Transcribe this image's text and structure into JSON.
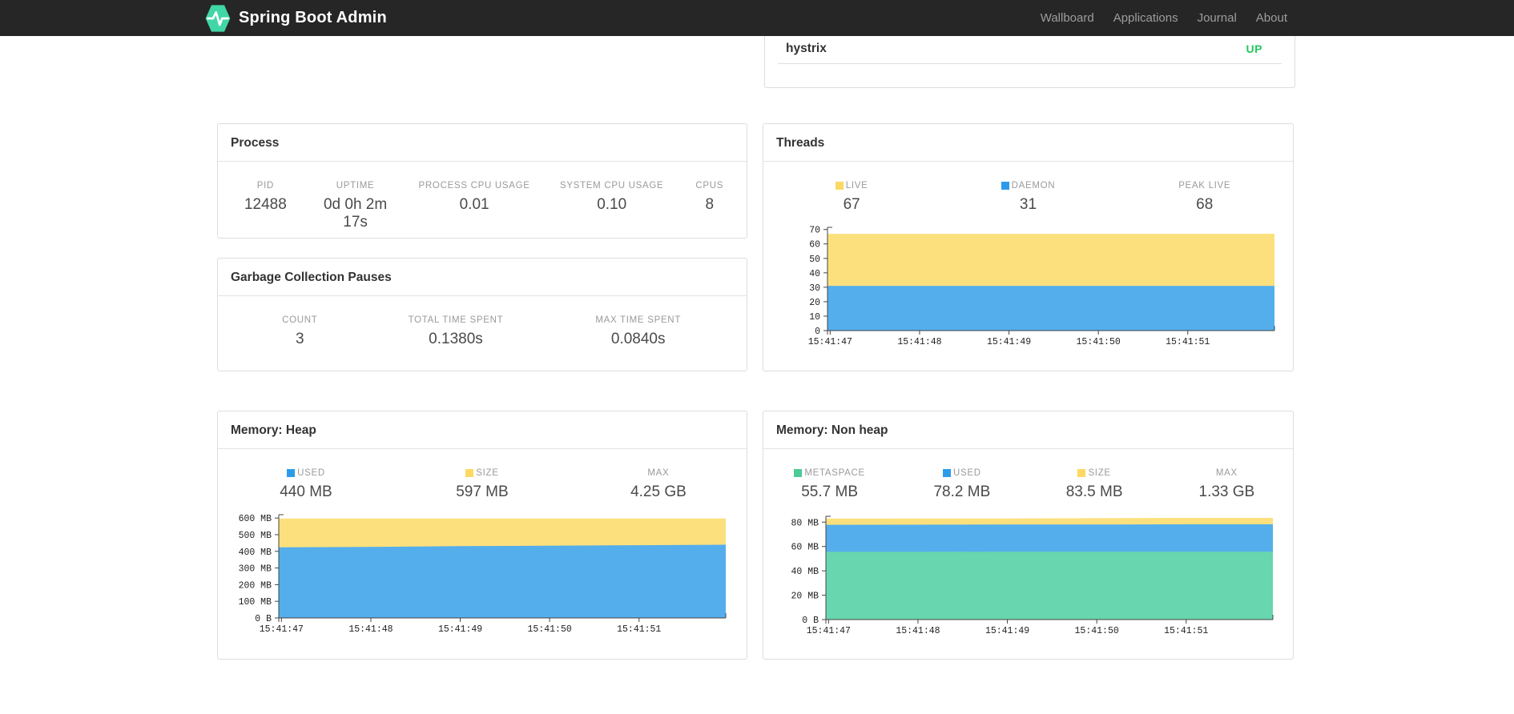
{
  "navbar": {
    "brand": "Spring Boot Admin",
    "brand_color": "#41D6A6",
    "items": [
      {
        "label": "Wallboard"
      },
      {
        "label": "Applications"
      },
      {
        "label": "Journal"
      },
      {
        "label": "About"
      }
    ]
  },
  "status_card": {
    "app_name": "hystrix",
    "status": "UP",
    "status_color": "#24C75F"
  },
  "process": {
    "title": "Process",
    "metrics": [
      {
        "label": "PID",
        "value": "12488"
      },
      {
        "label": "UPTIME",
        "value": "0d 0h 2m 17s"
      },
      {
        "label": "PROCESS CPU USAGE",
        "value": "0.01"
      },
      {
        "label": "SYSTEM CPU USAGE",
        "value": "0.10"
      },
      {
        "label": "CPUS",
        "value": "8"
      }
    ]
  },
  "gc": {
    "title": "Garbage Collection Pauses",
    "metrics": [
      {
        "label": "COUNT",
        "value": "3"
      },
      {
        "label": "TOTAL TIME SPENT",
        "value": "0.1380s"
      },
      {
        "label": "MAX TIME SPENT",
        "value": "0.0840s"
      }
    ]
  },
  "threads": {
    "title": "Threads",
    "metrics": [
      {
        "label": "LIVE",
        "value": "67",
        "swatch": "#FBD963"
      },
      {
        "label": "DAEMON",
        "value": "31",
        "swatch": "#2E9BEA"
      },
      {
        "label": "PEAK LIVE",
        "value": "68"
      }
    ]
  },
  "heap": {
    "title": "Memory: Heap",
    "metrics": [
      {
        "label": "USED",
        "value": "440 MB",
        "swatch": "#2E9BEA"
      },
      {
        "label": "SIZE",
        "value": "597 MB",
        "swatch": "#FBD963"
      },
      {
        "label": "MAX",
        "value": "4.25 GB"
      }
    ]
  },
  "nonheap": {
    "title": "Memory: Non heap",
    "metrics": [
      {
        "label": "METASPACE",
        "value": "55.7 MB",
        "swatch": "#4DCB96"
      },
      {
        "label": "USED",
        "value": "78.2 MB",
        "swatch": "#2E9BEA"
      },
      {
        "label": "SIZE",
        "value": "83.5 MB",
        "swatch": "#FBD963"
      },
      {
        "label": "MAX",
        "value": "1.33 GB"
      }
    ]
  },
  "chart_data": [
    {
      "id": "threads-chart",
      "type": "area",
      "title": "Threads",
      "stacked": true,
      "legend_position": "top-stats",
      "grid": false,
      "x_domain": [
        46.97,
        51.97
      ],
      "x_points": [
        46.97,
        48,
        49,
        50,
        51,
        51.97
      ],
      "xticks": [
        {
          "v": 47,
          "label": "15:41:47"
        },
        {
          "v": 48,
          "label": "15:41:48"
        },
        {
          "v": 49,
          "label": "15:41:49"
        },
        {
          "v": 50,
          "label": "15:41:50"
        },
        {
          "v": 51,
          "label": "15:41:51"
        }
      ],
      "ylim": [
        0,
        71.5
      ],
      "yticks": [
        {
          "v": 0,
          "label": "0"
        },
        {
          "v": 10,
          "label": "10"
        },
        {
          "v": 20,
          "label": "20"
        },
        {
          "v": 30,
          "label": "30"
        },
        {
          "v": 40,
          "label": "40"
        },
        {
          "v": 50,
          "label": "50"
        },
        {
          "v": 60,
          "label": "60"
        },
        {
          "v": 70,
          "label": "70"
        }
      ],
      "series": [
        {
          "name": "LIVE",
          "color": "#FCE07D",
          "values": [
            67,
            67,
            67,
            67,
            67,
            67
          ]
        },
        {
          "name": "DAEMON",
          "color": "#54AEEC",
          "values": [
            31,
            31,
            31,
            31,
            31,
            31
          ]
        }
      ]
    },
    {
      "id": "heap-chart",
      "type": "area",
      "title": "Memory: Heap",
      "stacked": true,
      "legend_position": "top-stats",
      "grid": false,
      "x_domain": [
        46.97,
        51.97
      ],
      "x_points": [
        46.97,
        48,
        49,
        50,
        51,
        51.97
      ],
      "xticks": [
        {
          "v": 47,
          "label": "15:41:47"
        },
        {
          "v": 48,
          "label": "15:41:48"
        },
        {
          "v": 49,
          "label": "15:41:49"
        },
        {
          "v": 50,
          "label": "15:41:50"
        },
        {
          "v": 51,
          "label": "15:41:51"
        }
      ],
      "ylim": [
        0,
        620
      ],
      "yticks": [
        {
          "v": 0,
          "label": "0 B"
        },
        {
          "v": 100,
          "label": "100 MB"
        },
        {
          "v": 200,
          "label": "200 MB"
        },
        {
          "v": 300,
          "label": "300 MB"
        },
        {
          "v": 400,
          "label": "400 MB"
        },
        {
          "v": 500,
          "label": "500 MB"
        },
        {
          "v": 600,
          "label": "600 MB"
        }
      ],
      "series": [
        {
          "name": "SIZE",
          "color": "#FCE07D",
          "values": [
            597,
            597,
            597,
            597,
            597,
            597
          ]
        },
        {
          "name": "USED",
          "color": "#54AEEC",
          "values": [
            424,
            427,
            431,
            434,
            437,
            440
          ]
        }
      ]
    },
    {
      "id": "nonheap-chart",
      "type": "area",
      "title": "Memory: Non heap",
      "stacked": true,
      "legend_position": "top-stats",
      "grid": false,
      "x_domain": [
        46.97,
        51.97
      ],
      "x_points": [
        46.97,
        48,
        49,
        50,
        51,
        51.97
      ],
      "xticks": [
        {
          "v": 47,
          "label": "15:41:47"
        },
        {
          "v": 48,
          "label": "15:41:48"
        },
        {
          "v": 49,
          "label": "15:41:49"
        },
        {
          "v": 50,
          "label": "15:41:50"
        },
        {
          "v": 51,
          "label": "15:41:51"
        }
      ],
      "ylim": [
        0,
        84.8
      ],
      "yticks": [
        {
          "v": 0,
          "label": "0 B"
        },
        {
          "v": 20,
          "label": "20 MB"
        },
        {
          "v": 40,
          "label": "40 MB"
        },
        {
          "v": 60,
          "label": "60 MB"
        },
        {
          "v": 80,
          "label": "80 MB"
        }
      ],
      "series": [
        {
          "name": "SIZE",
          "color": "#FCE07D",
          "values": [
            82.9,
            83,
            83,
            83.2,
            83.5,
            83.5
          ]
        },
        {
          "name": "USED",
          "color": "#54AEEC",
          "values": [
            77.8,
            77.9,
            78,
            78,
            78.2,
            78.2
          ]
        },
        {
          "name": "METASPACE",
          "color": "#68D6AE",
          "values": [
            55.6,
            55.6,
            55.7,
            55.7,
            55.7,
            55.7
          ]
        }
      ]
    }
  ]
}
